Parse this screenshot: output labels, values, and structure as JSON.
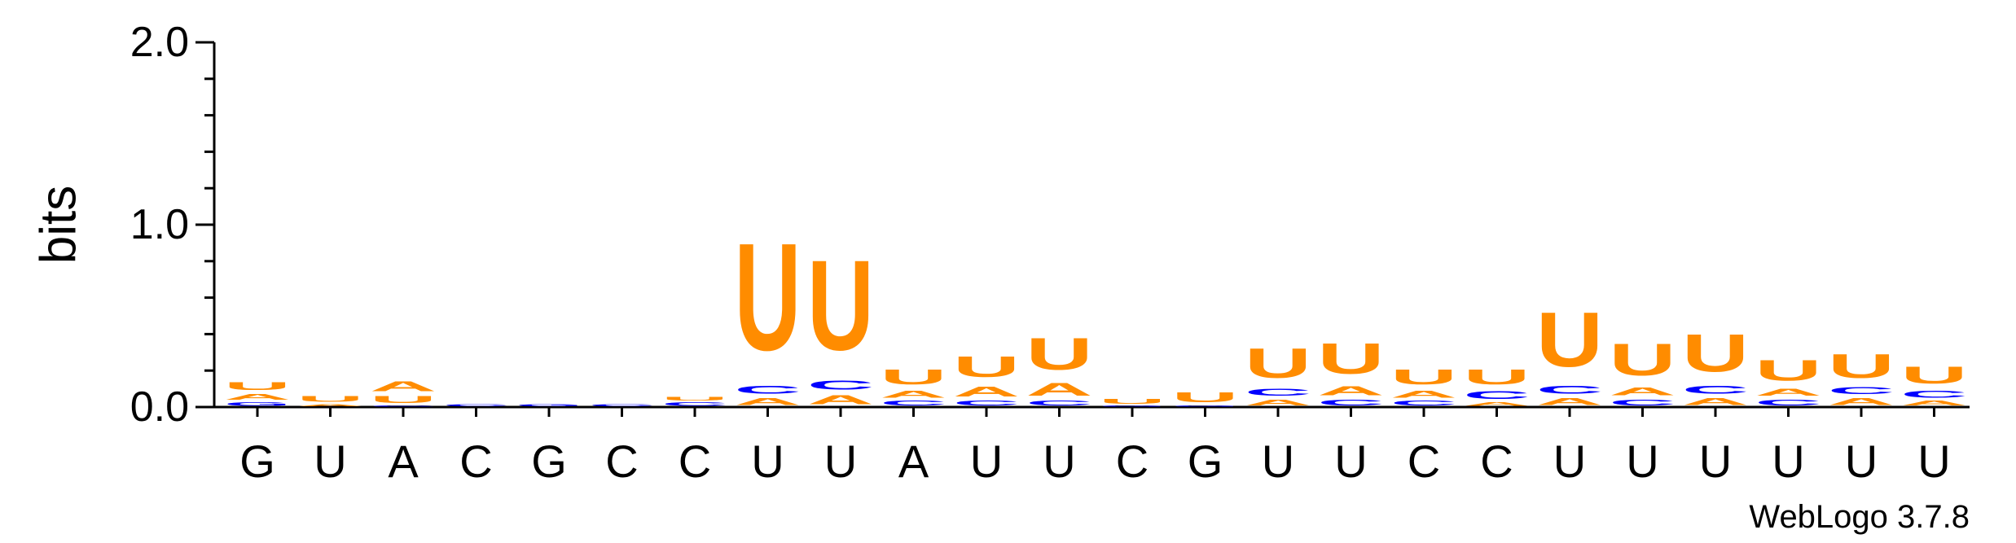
{
  "chart_data": {
    "type": "sequence-logo",
    "ylabel": "bits",
    "ylim": [
      0,
      2.0
    ],
    "yticks": [
      {
        "value": 0.0,
        "label": "0.0"
      },
      {
        "value": 1.0,
        "label": "1.0"
      },
      {
        "value": 2.0,
        "label": "2.0"
      }
    ],
    "minor_tick_step": 0.2,
    "credit": "WebLogo 3.7.8",
    "colors": {
      "U": "#ff8c00",
      "A": "#ff8c00",
      "C": "#0000ff",
      "G": "#0000ff"
    },
    "x_labels": [
      "G",
      "U",
      "A",
      "C",
      "G",
      "C",
      "C",
      "U",
      "U",
      "A",
      "U",
      "U",
      "C",
      "G",
      "U",
      "U",
      "C",
      "C",
      "U",
      "U",
      "U",
      "U",
      "U",
      "U"
    ],
    "positions": [
      {
        "stack": [
          {
            "letter": "G",
            "bits": 0.03
          },
          {
            "letter": "A",
            "bits": 0.05
          },
          {
            "letter": "U",
            "bits": 0.07
          }
        ]
      },
      {
        "stack": [
          {
            "letter": "A",
            "bits": 0.02
          },
          {
            "letter": "U",
            "bits": 0.05
          }
        ]
      },
      {
        "stack": [
          {
            "letter": "C",
            "bits": 0.01
          },
          {
            "letter": "U",
            "bits": 0.06
          },
          {
            "letter": "A",
            "bits": 0.09
          }
        ]
      },
      {
        "stack": [
          {
            "letter": "C",
            "bits": 0.02
          }
        ]
      },
      {
        "stack": [
          {
            "letter": "G",
            "bits": 0.02
          }
        ]
      },
      {
        "stack": [
          {
            "letter": "C",
            "bits": 0.02
          }
        ]
      },
      {
        "stack": [
          {
            "letter": "C",
            "bits": 0.03
          },
          {
            "letter": "U",
            "bits": 0.03
          }
        ]
      },
      {
        "stack": [
          {
            "letter": "A",
            "bits": 0.06
          },
          {
            "letter": "C",
            "bits": 0.07
          },
          {
            "letter": "U",
            "bits": 0.94
          }
        ]
      },
      {
        "stack": [
          {
            "letter": "A",
            "bits": 0.08
          },
          {
            "letter": "C",
            "bits": 0.08
          },
          {
            "letter": "U",
            "bits": 0.79
          }
        ]
      },
      {
        "stack": [
          {
            "letter": "C",
            "bits": 0.04
          },
          {
            "letter": "A",
            "bits": 0.06
          },
          {
            "letter": "U",
            "bits": 0.13
          }
        ]
      },
      {
        "stack": [
          {
            "letter": "C",
            "bits": 0.04
          },
          {
            "letter": "A",
            "bits": 0.09
          },
          {
            "letter": "U",
            "bits": 0.18
          }
        ]
      },
      {
        "stack": [
          {
            "letter": "C",
            "bits": 0.04
          },
          {
            "letter": "A",
            "bits": 0.11
          },
          {
            "letter": "U",
            "bits": 0.28
          }
        ]
      },
      {
        "stack": [
          {
            "letter": "G",
            "bits": 0.01
          },
          {
            "letter": "U",
            "bits": 0.04
          }
        ]
      },
      {
        "stack": [
          {
            "letter": "G",
            "bits": 0.01
          },
          {
            "letter": "U",
            "bits": 0.09
          }
        ]
      },
      {
        "stack": [
          {
            "letter": "A",
            "bits": 0.05
          },
          {
            "letter": "C",
            "bits": 0.06
          },
          {
            "letter": "U",
            "bits": 0.26
          }
        ]
      },
      {
        "stack": [
          {
            "letter": "C",
            "bits": 0.05
          },
          {
            "letter": "A",
            "bits": 0.08
          },
          {
            "letter": "U",
            "bits": 0.27
          }
        ]
      },
      {
        "stack": [
          {
            "letter": "C",
            "bits": 0.04
          },
          {
            "letter": "A",
            "bits": 0.06
          },
          {
            "letter": "U",
            "bits": 0.13
          }
        ]
      },
      {
        "stack": [
          {
            "letter": "A",
            "bits": 0.03
          },
          {
            "letter": "C",
            "bits": 0.07
          },
          {
            "letter": "U",
            "bits": 0.13
          }
        ]
      },
      {
        "stack": [
          {
            "letter": "A",
            "bits": 0.06
          },
          {
            "letter": "C",
            "bits": 0.07
          },
          {
            "letter": "U",
            "bits": 0.48
          }
        ]
      },
      {
        "stack": [
          {
            "letter": "C",
            "bits": 0.05
          },
          {
            "letter": "A",
            "bits": 0.07
          },
          {
            "letter": "U",
            "bits": 0.28
          }
        ]
      },
      {
        "stack": [
          {
            "letter": "A",
            "bits": 0.06
          },
          {
            "letter": "C",
            "bits": 0.07
          },
          {
            "letter": "U",
            "bits": 0.33
          }
        ]
      },
      {
        "stack": [
          {
            "letter": "C",
            "bits": 0.05
          },
          {
            "letter": "A",
            "bits": 0.06
          },
          {
            "letter": "U",
            "bits": 0.18
          }
        ]
      },
      {
        "stack": [
          {
            "letter": "A",
            "bits": 0.06
          },
          {
            "letter": "C",
            "bits": 0.06
          },
          {
            "letter": "U",
            "bits": 0.21
          }
        ]
      },
      {
        "stack": [
          {
            "letter": "A",
            "bits": 0.04
          },
          {
            "letter": "C",
            "bits": 0.06
          },
          {
            "letter": "U",
            "bits": 0.15
          }
        ]
      }
    ]
  }
}
